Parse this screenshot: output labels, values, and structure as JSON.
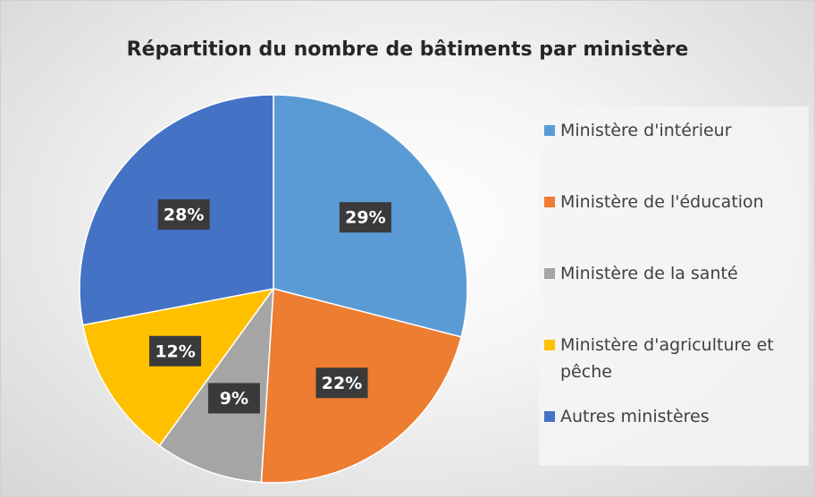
{
  "chart_data": {
    "type": "pie",
    "title": "Répartition du nombre de bâtiments par ministère",
    "categories": [
      "Ministère d'intérieur",
      "Ministère de l'éducation",
      "Ministère de la santé",
      "Ministère d'agriculture et pêche",
      "Autres ministères"
    ],
    "values": [
      29,
      22,
      9,
      12,
      28
    ],
    "value_labels": [
      "29%",
      "22%",
      "9%",
      "12%",
      "28%"
    ],
    "colors": [
      "#5b9bd5",
      "#ed7d31",
      "#a5a5a5",
      "#ffc000",
      "#4472c4"
    ],
    "legend": "right"
  }
}
